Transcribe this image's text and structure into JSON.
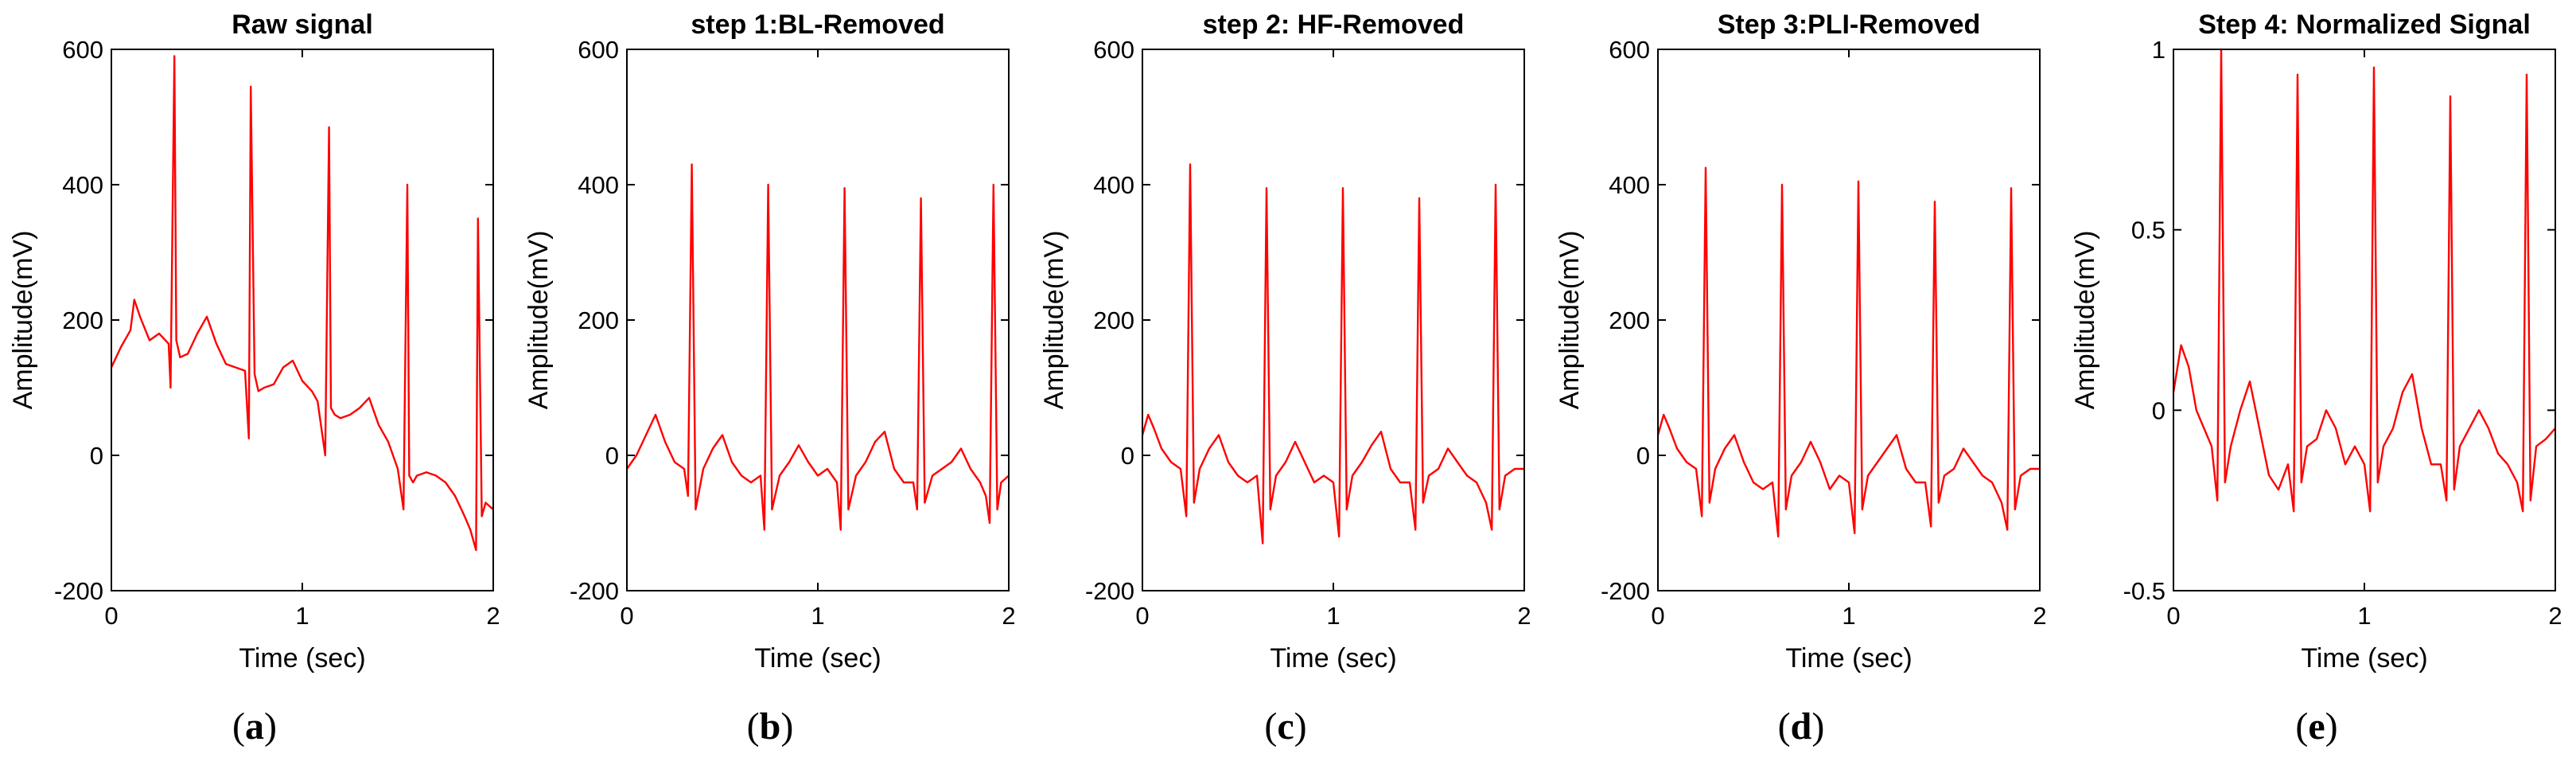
{
  "figure": {
    "trace_color": "#ff0000",
    "axis_color": "#000000",
    "background": "#ffffff"
  },
  "chart_data": [
    {
      "type": "line",
      "panel_label": "a",
      "title": "Raw signal",
      "xlabel": "Time (sec)",
      "ylabel": "Amplitude(mV)",
      "xlim": [
        0,
        2
      ],
      "ylim": [
        -200,
        600
      ],
      "xticks": [
        0,
        1,
        2
      ],
      "yticks": [
        -200,
        0,
        200,
        400,
        600
      ],
      "grid": false,
      "series": [
        {
          "name": "Raw signal",
          "x": [
            0,
            0.05,
            0.1,
            0.12,
            0.15,
            0.2,
            0.25,
            0.3,
            0.31,
            0.33,
            0.34,
            0.36,
            0.4,
            0.45,
            0.5,
            0.55,
            0.6,
            0.65,
            0.7,
            0.72,
            0.73,
            0.75,
            0.77,
            0.8,
            0.85,
            0.9,
            0.95,
            1.0,
            1.05,
            1.08,
            1.12,
            1.14,
            1.15,
            1.17,
            1.2,
            1.25,
            1.3,
            1.35,
            1.4,
            1.45,
            1.5,
            1.53,
            1.55,
            1.56,
            1.58,
            1.6,
            1.65,
            1.7,
            1.75,
            1.8,
            1.85,
            1.88,
            1.91,
            1.92,
            1.94,
            1.96,
            2.0
          ],
          "values": [
            130,
            160,
            185,
            230,
            205,
            170,
            180,
            165,
            100,
            590,
            170,
            145,
            150,
            180,
            205,
            165,
            135,
            130,
            125,
            25,
            545,
            120,
            95,
            100,
            105,
            130,
            140,
            110,
            95,
            80,
            0,
            485,
            70,
            60,
            55,
            60,
            70,
            85,
            45,
            20,
            -20,
            -80,
            400,
            -30,
            -40,
            -30,
            -25,
            -30,
            -40,
            -60,
            -90,
            -110,
            -140,
            350,
            -90,
            -70,
            -80
          ]
        }
      ]
    },
    {
      "type": "line",
      "panel_label": "b",
      "title": "step 1:BL-Removed",
      "xlabel": "Time (sec)",
      "ylabel": "Amplitude(mV)",
      "xlim": [
        0,
        2
      ],
      "ylim": [
        -200,
        600
      ],
      "xticks": [
        0,
        1,
        2
      ],
      "yticks": [
        -200,
        0,
        200,
        400,
        600
      ],
      "grid": false,
      "series": [
        {
          "name": "BL-Removed",
          "x": [
            0,
            0.05,
            0.1,
            0.15,
            0.2,
            0.25,
            0.3,
            0.32,
            0.34,
            0.36,
            0.4,
            0.45,
            0.5,
            0.55,
            0.6,
            0.65,
            0.7,
            0.72,
            0.74,
            0.76,
            0.8,
            0.85,
            0.9,
            0.95,
            1.0,
            1.05,
            1.1,
            1.12,
            1.14,
            1.16,
            1.2,
            1.25,
            1.3,
            1.35,
            1.4,
            1.45,
            1.5,
            1.52,
            1.54,
            1.56,
            1.6,
            1.65,
            1.7,
            1.75,
            1.8,
            1.85,
            1.88,
            1.9,
            1.92,
            1.94,
            1.96,
            2.0
          ],
          "values": [
            -20,
            0,
            30,
            60,
            20,
            -10,
            -20,
            -60,
            430,
            -80,
            -20,
            10,
            30,
            -10,
            -30,
            -40,
            -30,
            -110,
            400,
            -80,
            -30,
            -10,
            15,
            -10,
            -30,
            -20,
            -40,
            -110,
            395,
            -80,
            -30,
            -10,
            20,
            35,
            -20,
            -40,
            -40,
            -80,
            380,
            -70,
            -30,
            -20,
            -10,
            10,
            -20,
            -40,
            -60,
            -100,
            400,
            -80,
            -40,
            -30
          ]
        }
      ]
    },
    {
      "type": "line",
      "panel_label": "c",
      "title": "step 2: HF-Removed",
      "xlabel": "Time (sec)",
      "ylabel": "Amplitude(mV)",
      "xlim": [
        0,
        2
      ],
      "ylim": [
        -200,
        600
      ],
      "xticks": [
        0,
        1,
        2
      ],
      "yticks": [
        -200,
        0,
        200,
        400,
        600
      ],
      "grid": false,
      "series": [
        {
          "name": "HF-Removed",
          "x": [
            0,
            0.03,
            0.06,
            0.1,
            0.15,
            0.2,
            0.23,
            0.25,
            0.27,
            0.3,
            0.35,
            0.4,
            0.45,
            0.5,
            0.55,
            0.6,
            0.63,
            0.65,
            0.67,
            0.7,
            0.75,
            0.8,
            0.85,
            0.9,
            0.95,
            1.0,
            1.03,
            1.05,
            1.07,
            1.1,
            1.15,
            1.2,
            1.25,
            1.3,
            1.35,
            1.4,
            1.43,
            1.45,
            1.47,
            1.5,
            1.55,
            1.6,
            1.65,
            1.7,
            1.75,
            1.8,
            1.83,
            1.85,
            1.87,
            1.9,
            1.95,
            2.0
          ],
          "values": [
            30,
            60,
            40,
            10,
            -10,
            -20,
            -90,
            430,
            -70,
            -20,
            10,
            30,
            -10,
            -30,
            -40,
            -30,
            -130,
            395,
            -80,
            -30,
            -10,
            20,
            -10,
            -40,
            -30,
            -40,
            -120,
            395,
            -80,
            -30,
            -10,
            15,
            35,
            -20,
            -40,
            -40,
            -110,
            380,
            -70,
            -30,
            -20,
            10,
            -10,
            -30,
            -40,
            -70,
            -110,
            400,
            -80,
            -30,
            -20,
            -20
          ]
        }
      ]
    },
    {
      "type": "line",
      "panel_label": "d",
      "title": "Step 3:PLI-Removed",
      "xlabel": "Time (sec)",
      "ylabel": "Amplitude(mV)",
      "xlim": [
        0,
        2
      ],
      "ylim": [
        -200,
        600
      ],
      "xticks": [
        0,
        1,
        2
      ],
      "yticks": [
        -200,
        0,
        200,
        400,
        600
      ],
      "grid": false,
      "series": [
        {
          "name": "PLI-Removed",
          "x": [
            0,
            0.03,
            0.06,
            0.1,
            0.15,
            0.2,
            0.23,
            0.25,
            0.27,
            0.3,
            0.35,
            0.4,
            0.45,
            0.5,
            0.55,
            0.6,
            0.63,
            0.65,
            0.67,
            0.7,
            0.75,
            0.8,
            0.85,
            0.9,
            0.95,
            1.0,
            1.03,
            1.05,
            1.07,
            1.1,
            1.15,
            1.2,
            1.25,
            1.3,
            1.35,
            1.4,
            1.43,
            1.45,
            1.47,
            1.5,
            1.55,
            1.6,
            1.65,
            1.7,
            1.75,
            1.8,
            1.83,
            1.85,
            1.87,
            1.9,
            1.95,
            2.0
          ],
          "values": [
            30,
            60,
            40,
            10,
            -10,
            -20,
            -90,
            425,
            -70,
            -20,
            10,
            30,
            -10,
            -40,
            -50,
            -40,
            -120,
            400,
            -80,
            -30,
            -10,
            20,
            -10,
            -50,
            -30,
            -40,
            -115,
            405,
            -80,
            -30,
            -10,
            10,
            30,
            -20,
            -40,
            -40,
            -105,
            375,
            -70,
            -30,
            -20,
            10,
            -10,
            -30,
            -40,
            -70,
            -110,
            395,
            -80,
            -30,
            -20,
            -20
          ]
        }
      ]
    },
    {
      "type": "line",
      "panel_label": "e",
      "title": "Step 4: Normalized Signal",
      "xlabel": "Time (sec)",
      "ylabel": "Amplitude(mV)",
      "xlim": [
        0,
        2
      ],
      "ylim": [
        -0.5,
        1
      ],
      "xticks": [
        0,
        1,
        2
      ],
      "yticks": [
        -0.5,
        0,
        0.5,
        1
      ],
      "grid": false,
      "series": [
        {
          "name": "Normalized",
          "x": [
            0,
            0.04,
            0.08,
            0.12,
            0.16,
            0.2,
            0.23,
            0.25,
            0.27,
            0.3,
            0.35,
            0.4,
            0.45,
            0.5,
            0.55,
            0.6,
            0.63,
            0.65,
            0.67,
            0.7,
            0.75,
            0.8,
            0.85,
            0.9,
            0.95,
            1.0,
            1.03,
            1.05,
            1.07,
            1.1,
            1.15,
            1.2,
            1.25,
            1.3,
            1.35,
            1.4,
            1.43,
            1.45,
            1.47,
            1.5,
            1.55,
            1.6,
            1.65,
            1.7,
            1.75,
            1.8,
            1.83,
            1.85,
            1.87,
            1.9,
            1.95,
            2.0
          ],
          "values": [
            0.05,
            0.18,
            0.12,
            0.0,
            -0.05,
            -0.1,
            -0.25,
            1.0,
            -0.2,
            -0.1,
            0.0,
            0.08,
            -0.05,
            -0.18,
            -0.22,
            -0.15,
            -0.28,
            0.93,
            -0.2,
            -0.1,
            -0.08,
            0.0,
            -0.05,
            -0.15,
            -0.1,
            -0.15,
            -0.28,
            0.95,
            -0.2,
            -0.1,
            -0.05,
            0.05,
            0.1,
            -0.05,
            -0.15,
            -0.15,
            -0.25,
            0.87,
            -0.22,
            -0.1,
            -0.05,
            0.0,
            -0.05,
            -0.12,
            -0.15,
            -0.2,
            -0.28,
            0.93,
            -0.25,
            -0.1,
            -0.08,
            -0.05
          ]
        }
      ]
    }
  ]
}
